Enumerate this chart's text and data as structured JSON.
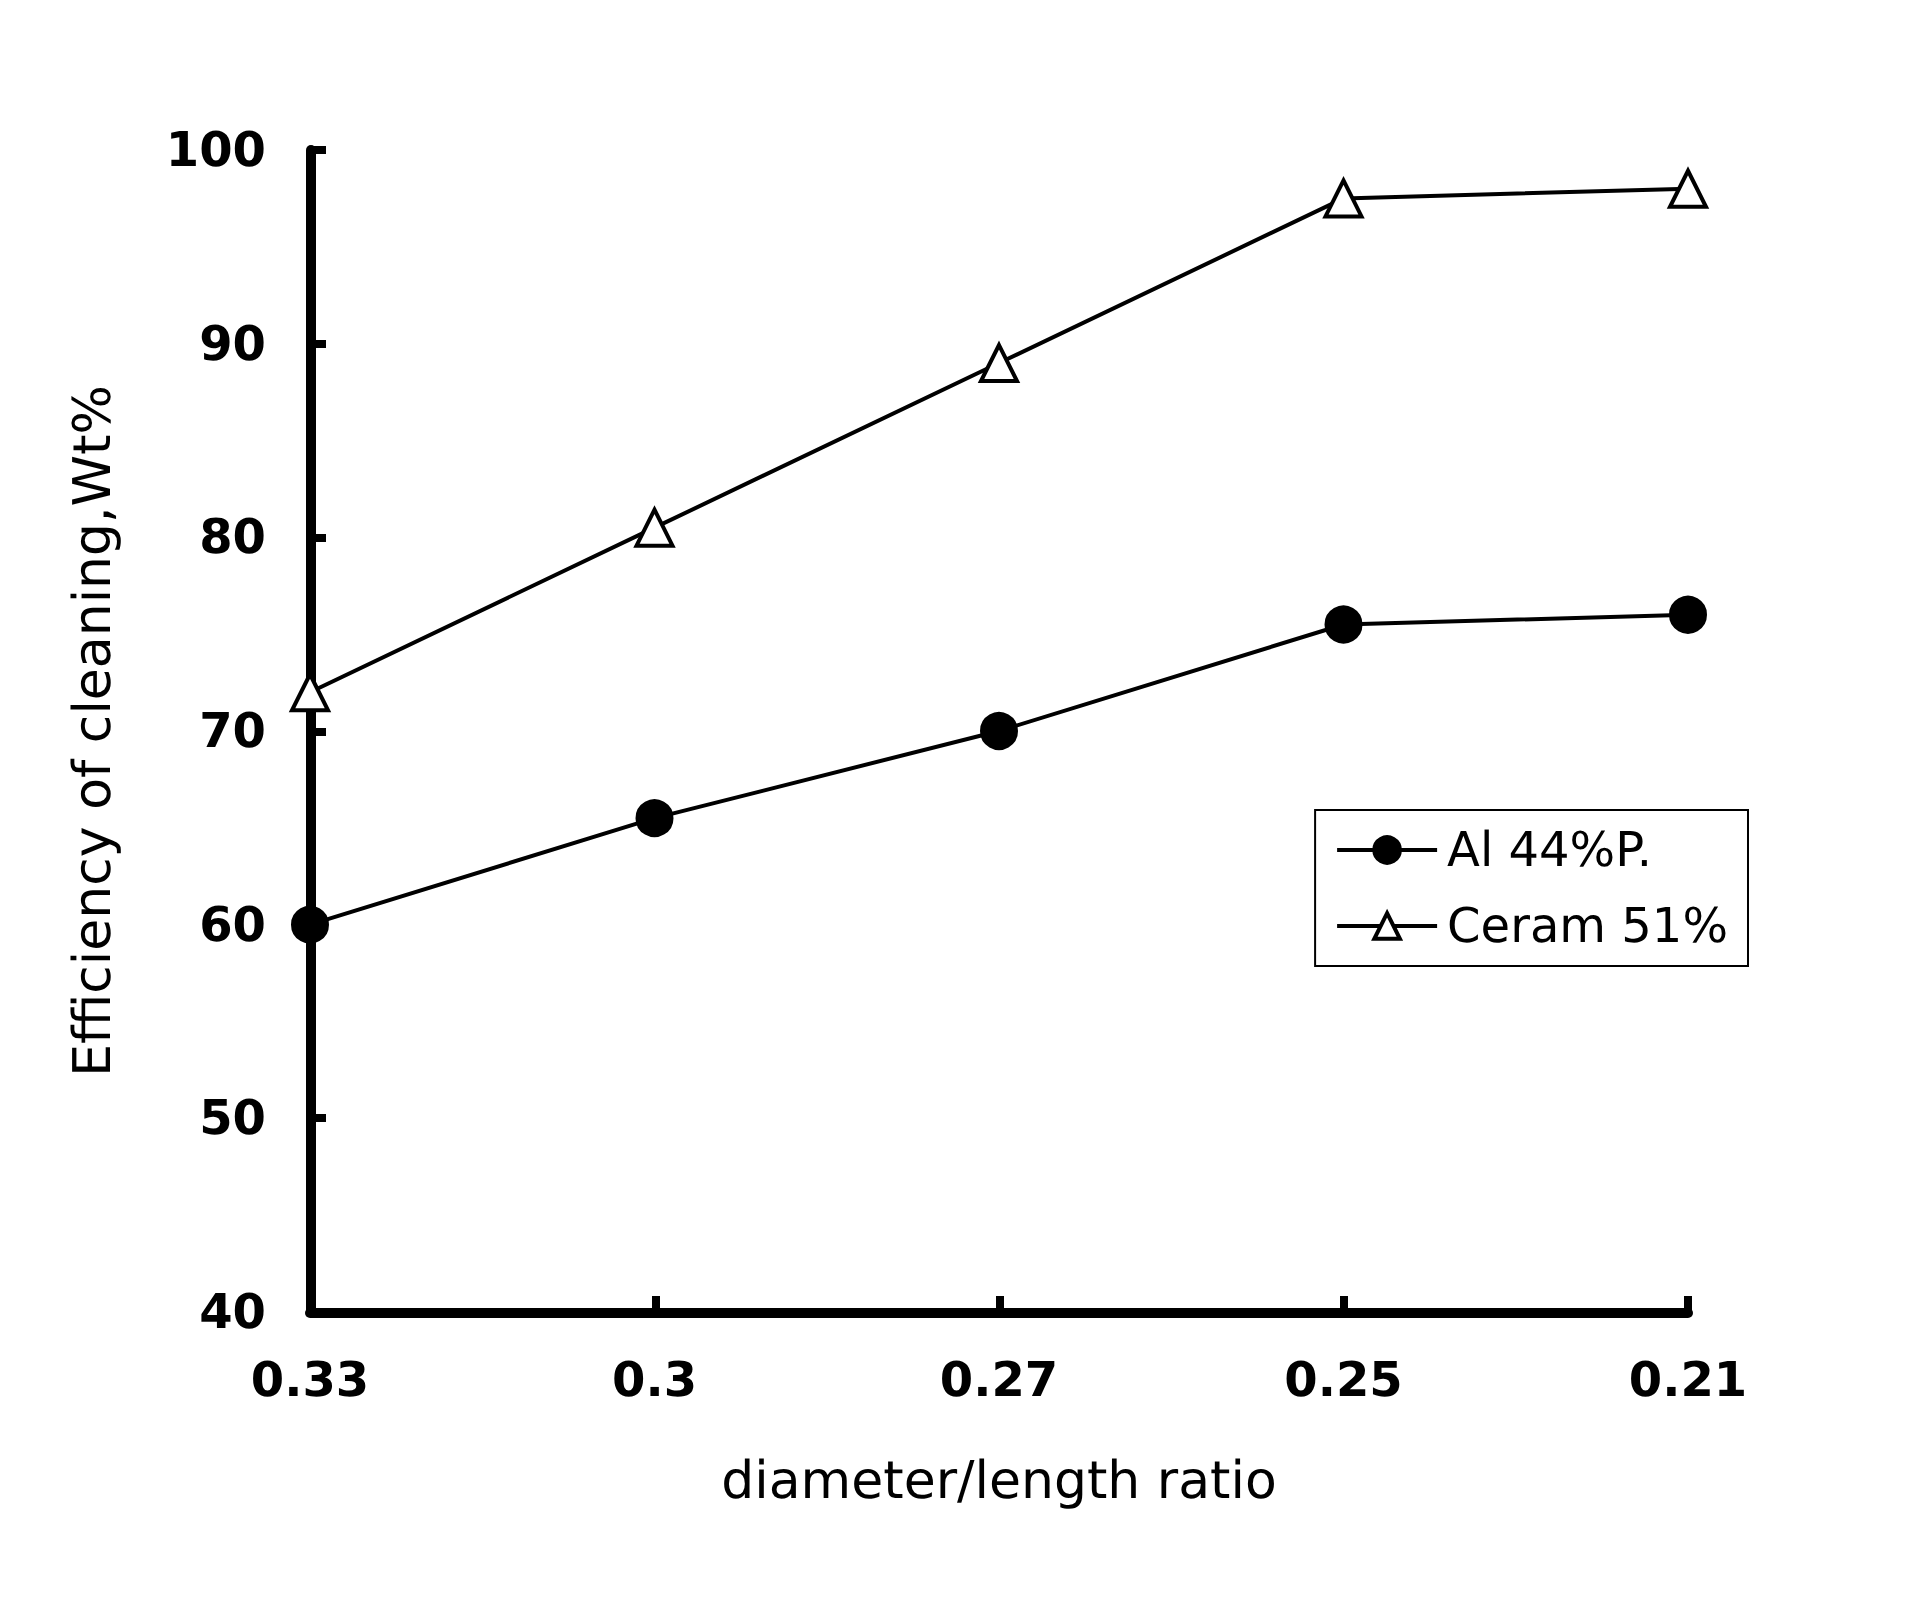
{
  "chart_data": {
    "type": "line",
    "xlabel": "diameter/length ratio",
    "ylabel": "Efficiency of cleaning,Wt%",
    "categories": [
      "0.33",
      "0.3",
      "0.27",
      "0.25",
      "0.21"
    ],
    "series": [
      {
        "name": "Al 44%P.",
        "color": "#000000",
        "marker": "circle",
        "values": [
          60,
          65.5,
          70,
          75.5,
          76
        ]
      },
      {
        "name": "Ceram 51%",
        "color": "#000000",
        "marker": "triangle",
        "values": [
          72,
          80.5,
          89,
          97.5,
          98
        ]
      }
    ],
    "ylim": [
      40,
      100
    ],
    "yticks": [
      40,
      50,
      60,
      70,
      80,
      90,
      100
    ],
    "grid": false,
    "legend": "right",
    "line_style": "solid"
  }
}
